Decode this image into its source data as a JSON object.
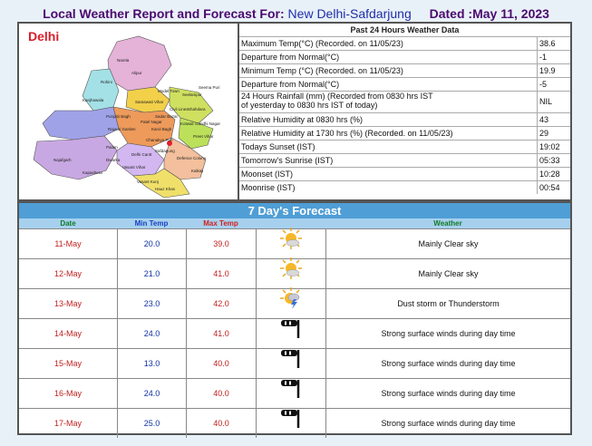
{
  "header": {
    "label": "Local Weather Report and Forecast For:",
    "station": "New Delhi-Safdarjung",
    "dated": "Dated :May 11, 2023"
  },
  "map": {
    "title": "Delhi",
    "places": [
      "Narela",
      "Rohini",
      "Alipur",
      "Model Town",
      "Seelampur",
      "Shahdara",
      "Seema Puri",
      "Punjabi Bagh",
      "Saraswati Vihar",
      "Kanjhawala",
      "Rajouri Garden",
      "Patel Nagar",
      "Karol Bagh",
      "Civil Lines",
      "Kotwali",
      "Preet Vihar",
      "Gandhi Nagar",
      "Najafgarh",
      "Dwarka",
      "Delhi Cantt",
      "Palam",
      "Vasant Vihar",
      "Safdarjung",
      "Hauz Khas",
      "Defence Colony",
      "Kalkaji",
      "Kapashera",
      "Chanakya Puri",
      "Vasant Kunj",
      "Sadar Bazar"
    ]
  },
  "past24": {
    "title": "Past 24 Hours Weather Data",
    "rows": [
      {
        "label": "Maximum Temp(°C) (Recorded. on 11/05/23)",
        "value": "38.6"
      },
      {
        "label": "Departure from Normal(°C)",
        "value": "-1"
      },
      {
        "label": "Minimum Temp (°C) (Recorded. on 11/05/23)",
        "value": "19.9"
      },
      {
        "label": "Departure from Normal(°C)",
        "value": "-5"
      },
      {
        "label": "24 Hours Rainfall (mm) (Recorded from 0830 hrs IST\nof yesterday to 0830 hrs IST of today)",
        "value": "NIL"
      },
      {
        "label": "Relative Humidity at 0830 hrs (%)",
        "value": "43"
      },
      {
        "label": "Relative Humidity at 1730 hrs (%) (Recorded. on 11/05/23)",
        "value": "29"
      },
      {
        "label": "Todays Sunset (IST)",
        "value": "19:02"
      },
      {
        "label": "Tomorrow's Sunrise (IST)",
        "value": "05:33"
      },
      {
        "label": "Moonset (IST)",
        "value": "10:28"
      },
      {
        "label": "Moonrise (IST)",
        "value": "00:54"
      }
    ]
  },
  "forecast": {
    "title": "7 Day's Forecast",
    "columns": [
      "Date",
      "Min Temp",
      "Max Temp",
      "",
      "Weather"
    ],
    "rows": [
      {
        "date": "11-May",
        "min": "20.0",
        "max": "39.0",
        "icon": "sun-cloud-icon",
        "weather": "Mainly Clear sky"
      },
      {
        "date": "12-May",
        "min": "21.0",
        "max": "41.0",
        "icon": "sun-cloud-icon",
        "weather": "Mainly Clear sky"
      },
      {
        "date": "13-May",
        "min": "23.0",
        "max": "42.0",
        "icon": "thunderstorm-icon",
        "weather": "Dust storm or Thunderstorm"
      },
      {
        "date": "14-May",
        "min": "24.0",
        "max": "41.0",
        "icon": "windsock-icon",
        "weather": "Strong surface winds during day time"
      },
      {
        "date": "15-May",
        "min": "13.0",
        "max": "40.0",
        "icon": "windsock-icon",
        "weather": "Strong surface winds during day time"
      },
      {
        "date": "16-May",
        "min": "24.0",
        "max": "40.0",
        "icon": "windsock-icon",
        "weather": "Strong surface winds during day time"
      },
      {
        "date": "17-May",
        "min": "25.0",
        "max": "40.0",
        "icon": "windsock-icon",
        "weather": "Strong surface winds during day time"
      }
    ]
  },
  "colors": {
    "title": "#4b0a6e",
    "station": "#1f2ea8",
    "forecast_header": "#4f9ed6",
    "column_header": "#a6d0ee",
    "date_text": "#c02020",
    "min_temp_text": "#1030a0"
  }
}
